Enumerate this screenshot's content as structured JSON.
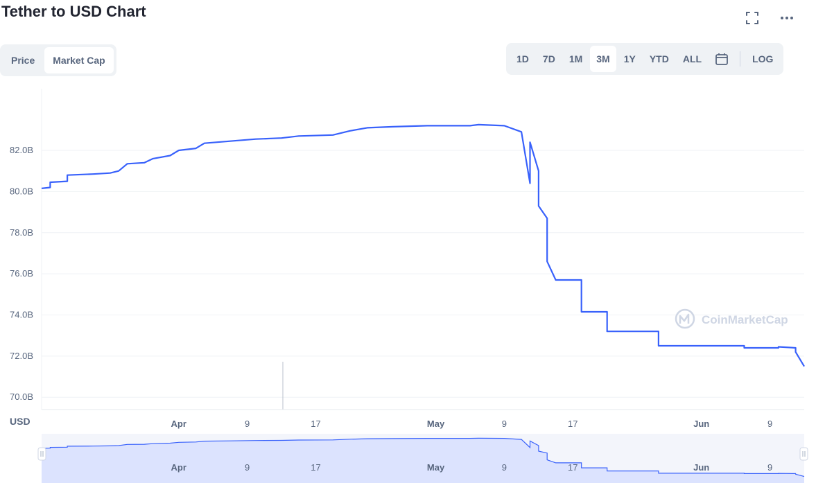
{
  "header": {
    "title": "Tether to USD Chart",
    "fullscreen_icon": "fullscreen-icon",
    "more_icon": "more-dots-icon"
  },
  "metric_tabs": [
    {
      "label": "Price",
      "active": false
    },
    {
      "label": "Market Cap",
      "active": true
    }
  ],
  "range_tabs": [
    {
      "label": "1D",
      "active": false
    },
    {
      "label": "7D",
      "active": false
    },
    {
      "label": "1M",
      "active": false
    },
    {
      "label": "3M",
      "active": true
    },
    {
      "label": "1Y",
      "active": false
    },
    {
      "label": "YTD",
      "active": false
    },
    {
      "label": "ALL",
      "active": false
    }
  ],
  "calendar_icon": "calendar-icon",
  "log_label": "LOG",
  "watermark": "CoinMarketCap",
  "colors": {
    "line": "#3861fb",
    "grid": "#eff2f5",
    "navigator_fill": "#dce3fe",
    "text": "#58667e",
    "watermark": "#cfd6e4"
  },
  "chart_data": {
    "type": "line",
    "title": "",
    "currency_label": "USD",
    "x_range": [
      "2022-03-16",
      "2022-06-13"
    ],
    "ylim": [
      69.4,
      85.0
    ],
    "grid": "horizontal",
    "y_ticks": [
      {
        "value": 70,
        "label": "70.0B"
      },
      {
        "value": 72,
        "label": "72.0B"
      },
      {
        "value": 74,
        "label": "74.0B"
      },
      {
        "value": 76,
        "label": "76.0B"
      },
      {
        "value": 78,
        "label": "78.0B"
      },
      {
        "value": 80,
        "label": "80.0B"
      },
      {
        "value": 82,
        "label": "82.0B"
      }
    ],
    "x_ticks": [
      {
        "date": "2022-04-01",
        "label": "Apr",
        "bold": true
      },
      {
        "date": "2022-04-09",
        "label": "9",
        "bold": false
      },
      {
        "date": "2022-04-17",
        "label": "17",
        "bold": false
      },
      {
        "date": "2022-05-01",
        "label": "May",
        "bold": true
      },
      {
        "date": "2022-05-09",
        "label": "9",
        "bold": false
      },
      {
        "date": "2022-05-17",
        "label": "17",
        "bold": false
      },
      {
        "date": "2022-06-01",
        "label": "Jun",
        "bold": true
      },
      {
        "date": "2022-06-09",
        "label": "9",
        "bold": false
      }
    ],
    "series": [
      {
        "unit": "B USD",
        "points": [
          [
            "2022-03-16",
            80.15
          ],
          [
            "2022-03-17",
            80.2
          ],
          [
            "2022-03-17",
            80.45
          ],
          [
            "2022-03-19",
            80.5
          ],
          [
            "2022-03-19",
            80.8
          ],
          [
            "2022-03-22",
            80.85
          ],
          [
            "2022-03-24",
            80.9
          ],
          [
            "2022-03-25",
            81.0
          ],
          [
            "2022-03-26",
            81.35
          ],
          [
            "2022-03-28",
            81.4
          ],
          [
            "2022-03-29",
            81.6
          ],
          [
            "2022-03-31",
            81.75
          ],
          [
            "2022-04-01",
            82.0
          ],
          [
            "2022-04-03",
            82.1
          ],
          [
            "2022-04-04",
            82.35
          ],
          [
            "2022-04-07",
            82.45
          ],
          [
            "2022-04-10",
            82.55
          ],
          [
            "2022-04-13",
            82.6
          ],
          [
            "2022-04-15",
            82.7
          ],
          [
            "2022-04-19",
            82.75
          ],
          [
            "2022-04-21",
            82.95
          ],
          [
            "2022-04-23",
            83.1
          ],
          [
            "2022-04-26",
            83.15
          ],
          [
            "2022-04-30",
            83.2
          ],
          [
            "2022-05-05",
            83.2
          ],
          [
            "2022-05-06",
            83.25
          ],
          [
            "2022-05-09",
            83.2
          ],
          [
            "2022-05-11",
            82.9
          ],
          [
            "2022-05-12",
            80.4
          ],
          [
            "2022-05-12",
            82.4
          ],
          [
            "2022-05-13",
            81.0
          ],
          [
            "2022-05-13",
            79.3
          ],
          [
            "2022-05-14",
            78.7
          ],
          [
            "2022-05-14",
            76.6
          ],
          [
            "2022-05-15",
            75.7
          ],
          [
            "2022-05-18",
            75.7
          ],
          [
            "2022-05-18",
            74.15
          ],
          [
            "2022-05-21",
            74.15
          ],
          [
            "2022-05-21",
            73.2
          ],
          [
            "2022-05-27",
            73.2
          ],
          [
            "2022-05-27",
            72.5
          ],
          [
            "2022-06-06",
            72.5
          ],
          [
            "2022-06-06",
            72.4
          ],
          [
            "2022-06-10",
            72.4
          ],
          [
            "2022-06-10",
            72.45
          ],
          [
            "2022-06-12",
            72.4
          ],
          [
            "2022-06-12",
            72.2
          ],
          [
            "2022-06-13",
            71.5
          ]
        ]
      }
    ]
  }
}
